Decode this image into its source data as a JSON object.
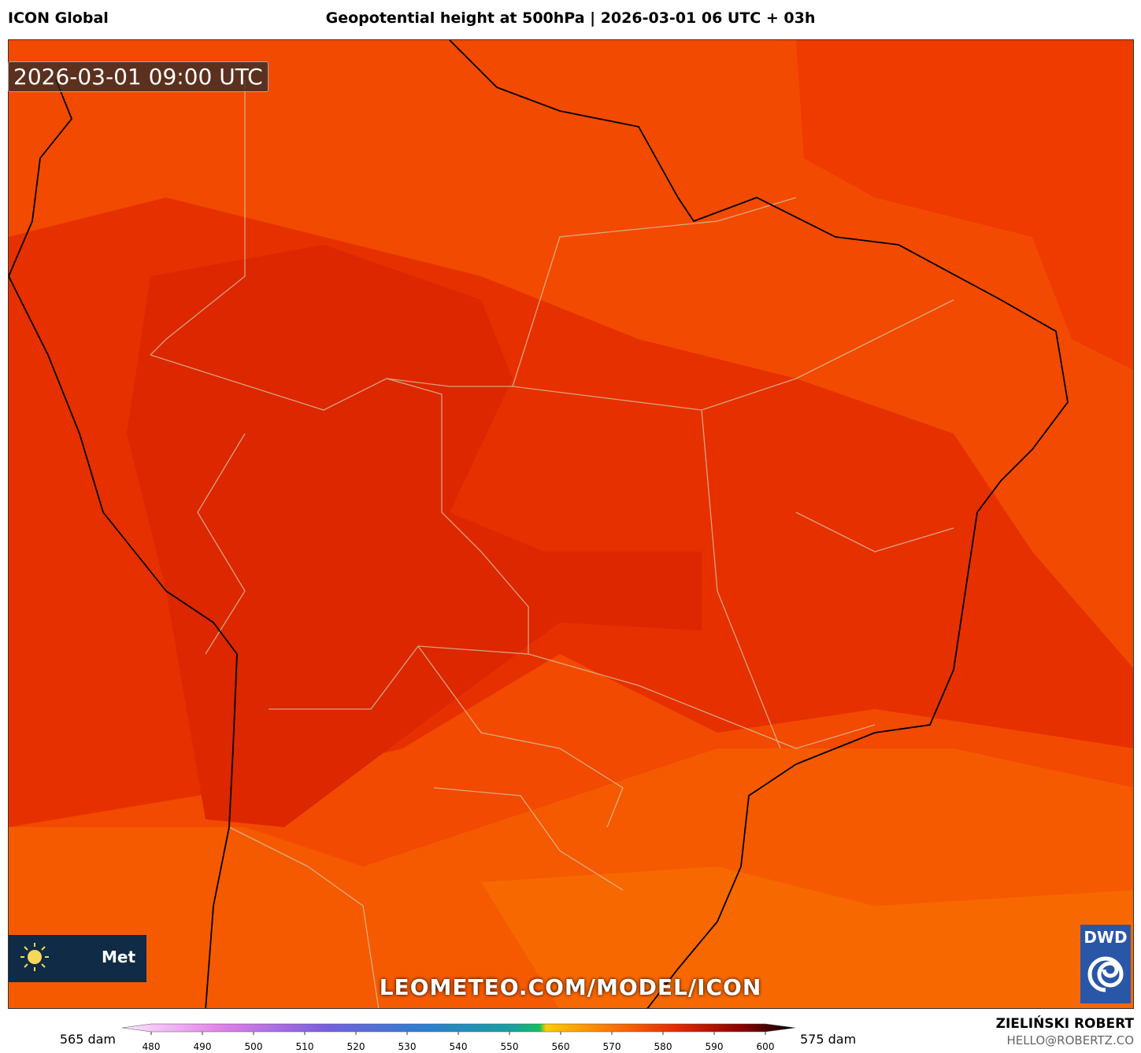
{
  "header": {
    "model": "ICON Global",
    "title": "Geopotential height at 500hPa | 2026-03-01 06 UTC + 03h"
  },
  "map": {
    "timestamp": "2026-03-01 09:00 UTC",
    "logo_text": "Met",
    "watermark": "LEOMETEO.COM/MODEL/ICON",
    "dwd": "DWD"
  },
  "colorbar": {
    "left_label": "565 dam",
    "right_label": "575 dam",
    "ticks": [
      480,
      490,
      500,
      510,
      520,
      530,
      540,
      550,
      560,
      570,
      580,
      590,
      600
    ]
  },
  "credits": {
    "name": "ZIELIŃSKI ROBERT",
    "email": "HELLO@ROBERTZ.CO"
  }
}
